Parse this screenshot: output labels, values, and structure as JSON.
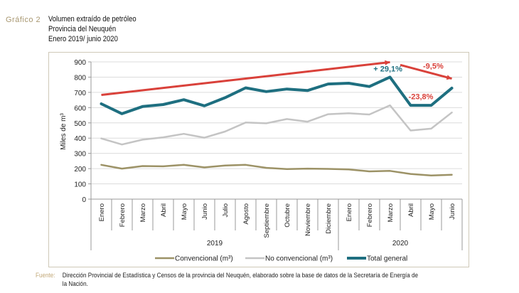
{
  "header": {
    "label": "Gráfico 2",
    "title_lines": [
      "Volumen extraído de petróleo",
      "Provincia del Neuquén",
      "Enero 2019/ junio 2020"
    ]
  },
  "source": {
    "label": "Fuente:",
    "text": "Dirección Provincial de Estadística y Censos de la provincia del Neuquén, elaborado sobre la base de datos de la Secretaría de Energía de",
    "text2": "la Nación."
  },
  "chart_data": {
    "type": "line",
    "title": "Volumen extraído de petróleo - Provincia del Neuquén - Enero 2019/ junio 2020",
    "ylabel": "Miles de m³",
    "xlabel": "",
    "ylim": [
      0,
      900
    ],
    "yticks": [
      0,
      100,
      200,
      300,
      400,
      500,
      600,
      700,
      800,
      900
    ],
    "grid": true,
    "legend_position": "bottom",
    "categories": [
      "Enero",
      "Febrero",
      "Marzo",
      "Abril",
      "Mayo",
      "Junio",
      "Julio",
      "Agosto",
      "Septiembre",
      "Octubre",
      "Noviembre",
      "Diciembre",
      "Enero",
      "Febrero",
      "Marzo",
      "Abril",
      "Mayo",
      "Junio"
    ],
    "year_groups": [
      {
        "label": "2019",
        "start": 0,
        "end": 11
      },
      {
        "label": "2020",
        "start": 12,
        "end": 17
      }
    ],
    "series": [
      {
        "name": "Convencional (m³)",
        "color": "#9c9266",
        "values": [
          225,
          200,
          217,
          215,
          225,
          208,
          220,
          225,
          205,
          197,
          200,
          198,
          195,
          182,
          185,
          165,
          155,
          160
        ]
      },
      {
        "name": "No convencional (m³)",
        "color": "#c4c4c4",
        "values": [
          398,
          358,
          390,
          405,
          428,
          403,
          443,
          502,
          497,
          525,
          508,
          557,
          563,
          555,
          615,
          450,
          462,
          568
        ]
      },
      {
        "name": "Total general",
        "color": "#1e6f80",
        "values": [
          625,
          560,
          607,
          620,
          652,
          612,
          665,
          730,
          705,
          722,
          712,
          755,
          760,
          738,
          800,
          615,
          615,
          728
        ]
      }
    ],
    "trend_arrows": [
      {
        "from_index": 0,
        "from_value": 683,
        "to_index": 14,
        "to_value": 898,
        "color": "#d9413a"
      },
      {
        "from_index": 14.5,
        "from_value": 880,
        "to_index": 17,
        "to_value": 790,
        "color": "#d9413a"
      }
    ],
    "annotations": [
      {
        "text": "+ 29,1%",
        "index": 13.9,
        "value": 838,
        "color": "#1e6f80"
      },
      {
        "text": "-9,5%",
        "index": 16.1,
        "value": 855,
        "color": "#d9413a"
      },
      {
        "text": "-23,8%",
        "index": 15.5,
        "value": 655,
        "color": "#d9413a"
      }
    ]
  }
}
